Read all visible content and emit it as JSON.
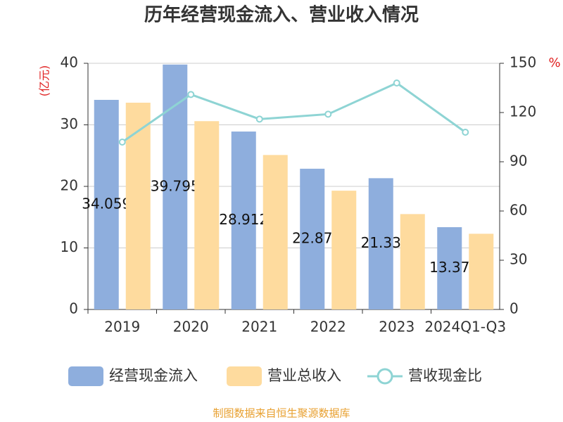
{
  "chart_data": {
    "type": "bar_line",
    "title": "历年经营现金流入、营业收入情况",
    "y_label": "(亿元)",
    "y2_label": "%",
    "categories": [
      "2019",
      "2020",
      "2021",
      "2022",
      "2023",
      "2024Q1-Q3"
    ],
    "series": [
      {
        "name": "经营现金流入",
        "color": "#8eaedd",
        "type": "bar",
        "values": [
          34.059,
          39.795,
          28.912,
          22.87,
          21.33,
          13.37
        ],
        "show_labels": true
      },
      {
        "name": "营业总收入",
        "color": "#fedb9e",
        "type": "bar",
        "values": [
          33.6,
          30.6,
          25.1,
          19.3,
          15.5,
          12.3
        ]
      },
      {
        "name": "营收现金比",
        "color": "#8ed4d4",
        "type": "line",
        "axis": "y2",
        "values": [
          102,
          131,
          116,
          119,
          138,
          108
        ]
      }
    ],
    "ylim": [
      0,
      40
    ],
    "yticks": [
      0,
      10,
      20,
      30,
      40
    ],
    "y2lim": [
      0,
      150
    ],
    "y2ticks": [
      0,
      30,
      60,
      90,
      120,
      150
    ],
    "grid": true,
    "source": "制图数据来自恒生聚源数据库"
  }
}
